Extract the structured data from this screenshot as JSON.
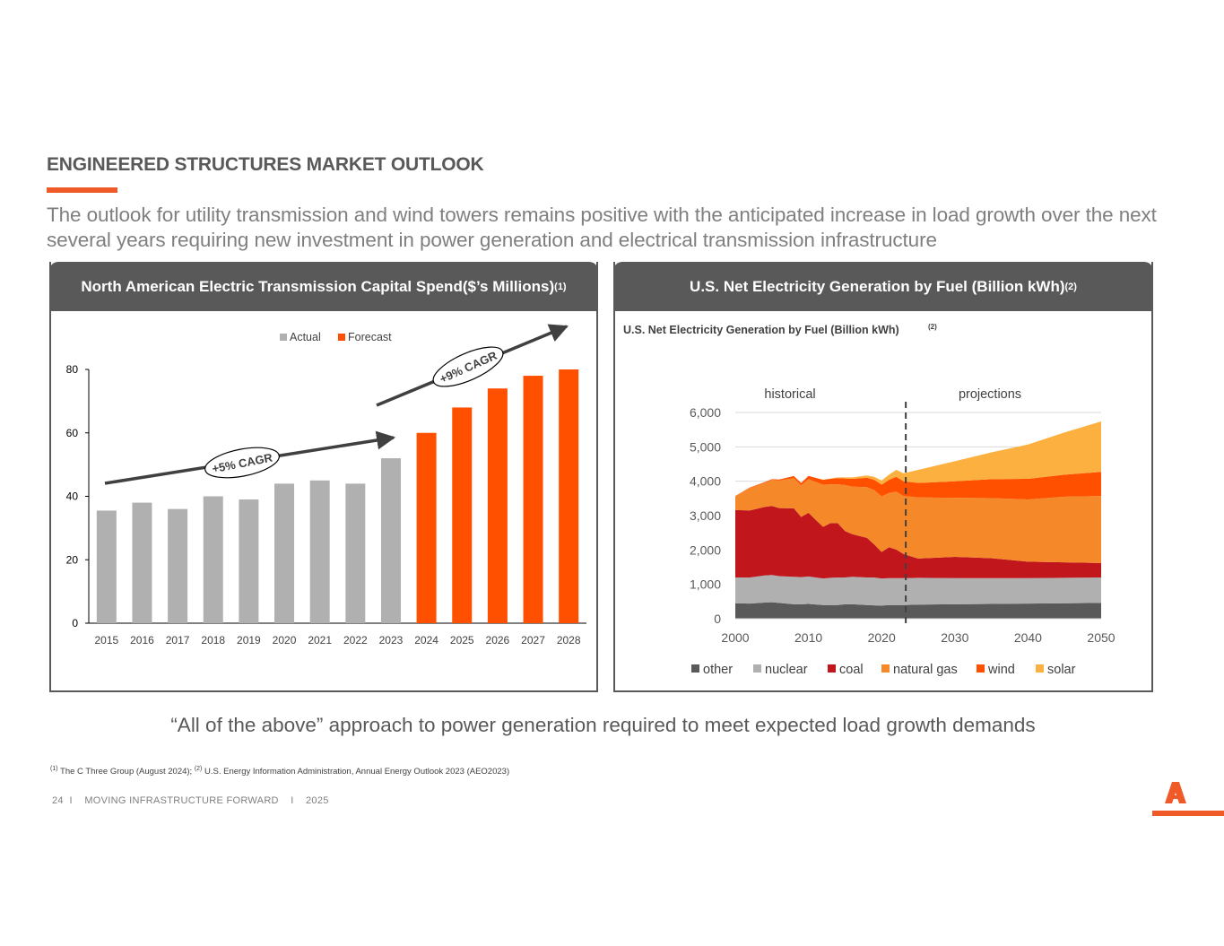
{
  "page": {
    "title": "ENGINEERED STRUCTURES MARKET OUTLOOK",
    "subtitle": "The outlook for utility transmission and wind towers remains positive with the anticipated increase in load growth over the next several years requiring new investment in power generation and electrical transmission infrastructure",
    "quote": "“All of the above” approach to power generation required to meet expected load growth demands",
    "footnote_1_mark": "(1)",
    "footnote_1": " The C Three Group (August 2024); ",
    "footnote_2_mark": "(2)",
    "footnote_2": " U.S. Energy Information Administration, Annual Energy Outlook 2023 (AEO2023)",
    "footer": "24  I    MOVING INFRASTRUCTURE FORWARD    I    2025",
    "accent_color": "#f05a28",
    "header_color": "#595959"
  },
  "left_panel": {
    "header": "North American Electric Transmission Capital Spend($’s Millions)",
    "header_sup": "(1)"
  },
  "right_panel": {
    "header": "U.S. Net Electricity Generation by Fuel (Billion kWh)",
    "header_sup": "(2)"
  },
  "chart_data": [
    {
      "type": "bar",
      "title": "North American Electric Transmission Capital Spend($’s Millions)",
      "categories": [
        "2015",
        "2016",
        "2017",
        "2018",
        "2019",
        "2020",
        "2021",
        "2022",
        "2023",
        "2024",
        "2025",
        "2026",
        "2027",
        "2028"
      ],
      "series": [
        {
          "name": "Actual",
          "color": "#b0b0b0",
          "values": [
            35.5,
            38,
            36,
            40,
            39,
            44,
            45,
            44,
            52,
            null,
            null,
            null,
            null,
            null
          ]
        },
        {
          "name": "Forecast",
          "color": "#ff5000",
          "values": [
            null,
            null,
            null,
            null,
            null,
            null,
            null,
            null,
            null,
            60,
            68,
            74,
            78,
            80
          ]
        }
      ],
      "yticks": [
        0,
        20,
        40,
        60,
        80
      ],
      "ylim": [
        0,
        80
      ],
      "legend_position": "top-center",
      "annotations": [
        {
          "text": "+5% CAGR",
          "from_category": "2015",
          "to_category": "2023"
        },
        {
          "text": "+9% CAGR",
          "from_category": "2023",
          "to_category": "2028"
        }
      ]
    },
    {
      "type": "area",
      "title": "U.S.  Net Electricity Generation by Fuel (Billion kWh)",
      "title_sup": "(2)",
      "x": [
        2000,
        2002,
        2004,
        2005,
        2006,
        2008,
        2009,
        2010,
        2012,
        2013,
        2014,
        2015,
        2016,
        2018,
        2019,
        2020,
        2021,
        2022,
        2023,
        2025,
        2030,
        2035,
        2040,
        2045,
        2050
      ],
      "series": [
        {
          "name": "other",
          "color": "#595959",
          "values": [
            450,
            440,
            470,
            480,
            460,
            420,
            420,
            430,
            400,
            400,
            400,
            420,
            420,
            400,
            390,
            380,
            400,
            400,
            400,
            410,
            420,
            430,
            440,
            450,
            460
          ]
        },
        {
          "name": "nuclear",
          "color": "#b0b0b0",
          "values": [
            750,
            760,
            790,
            790,
            780,
            800,
            790,
            800,
            770,
            790,
            800,
            780,
            800,
            800,
            810,
            790,
            780,
            780,
            780,
            780,
            760,
            750,
            740,
            740,
            740
          ]
        },
        {
          "name": "coal",
          "color": "#c0161c",
          "values": [
            1960,
            1950,
            1990,
            2010,
            1980,
            1990,
            1750,
            1850,
            1500,
            1590,
            1580,
            1350,
            1240,
            1150,
            960,
            770,
            900,
            830,
            700,
            560,
            620,
            580,
            480,
            450,
            420
          ]
        },
        {
          "name": "natural gas",
          "color": "#f5892a",
          "values": [
            400,
            650,
            700,
            760,
            800,
            880,
            920,
            980,
            1230,
            1130,
            1130,
            1340,
            1380,
            1480,
            1580,
            1620,
            1580,
            1690,
            1690,
            1780,
            1720,
            1750,
            1810,
            1910,
            1950
          ]
        },
        {
          "name": "wind",
          "color": "#ff5000",
          "values": [
            10,
            20,
            20,
            20,
            30,
            60,
            70,
            95,
            140,
            160,
            180,
            190,
            230,
            270,
            300,
            340,
            380,
            430,
            430,
            420,
            480,
            550,
            600,
            640,
            700
          ]
        },
        {
          "name": "solar",
          "color": "#fbb040",
          "values": [
            0,
            0,
            0,
            0,
            0,
            0,
            0,
            0,
            5,
            10,
            20,
            30,
            40,
            70,
            90,
            120,
            150,
            200,
            230,
            380,
            580,
            780,
            1000,
            1230,
            1470
          ]
        }
      ],
      "xticks": [
        2000,
        2010,
        2020,
        2030,
        2040,
        2050
      ],
      "yticks": [
        "0",
        "1,000",
        "2,000",
        "3,000",
        "4,000",
        "5,000",
        "6,000"
      ],
      "ylim": [
        0,
        6000
      ],
      "xlim": [
        2000,
        2050
      ],
      "divider_year": 2023.3,
      "region_labels": [
        "historical",
        "projections"
      ],
      "legend_position": "bottom"
    }
  ]
}
